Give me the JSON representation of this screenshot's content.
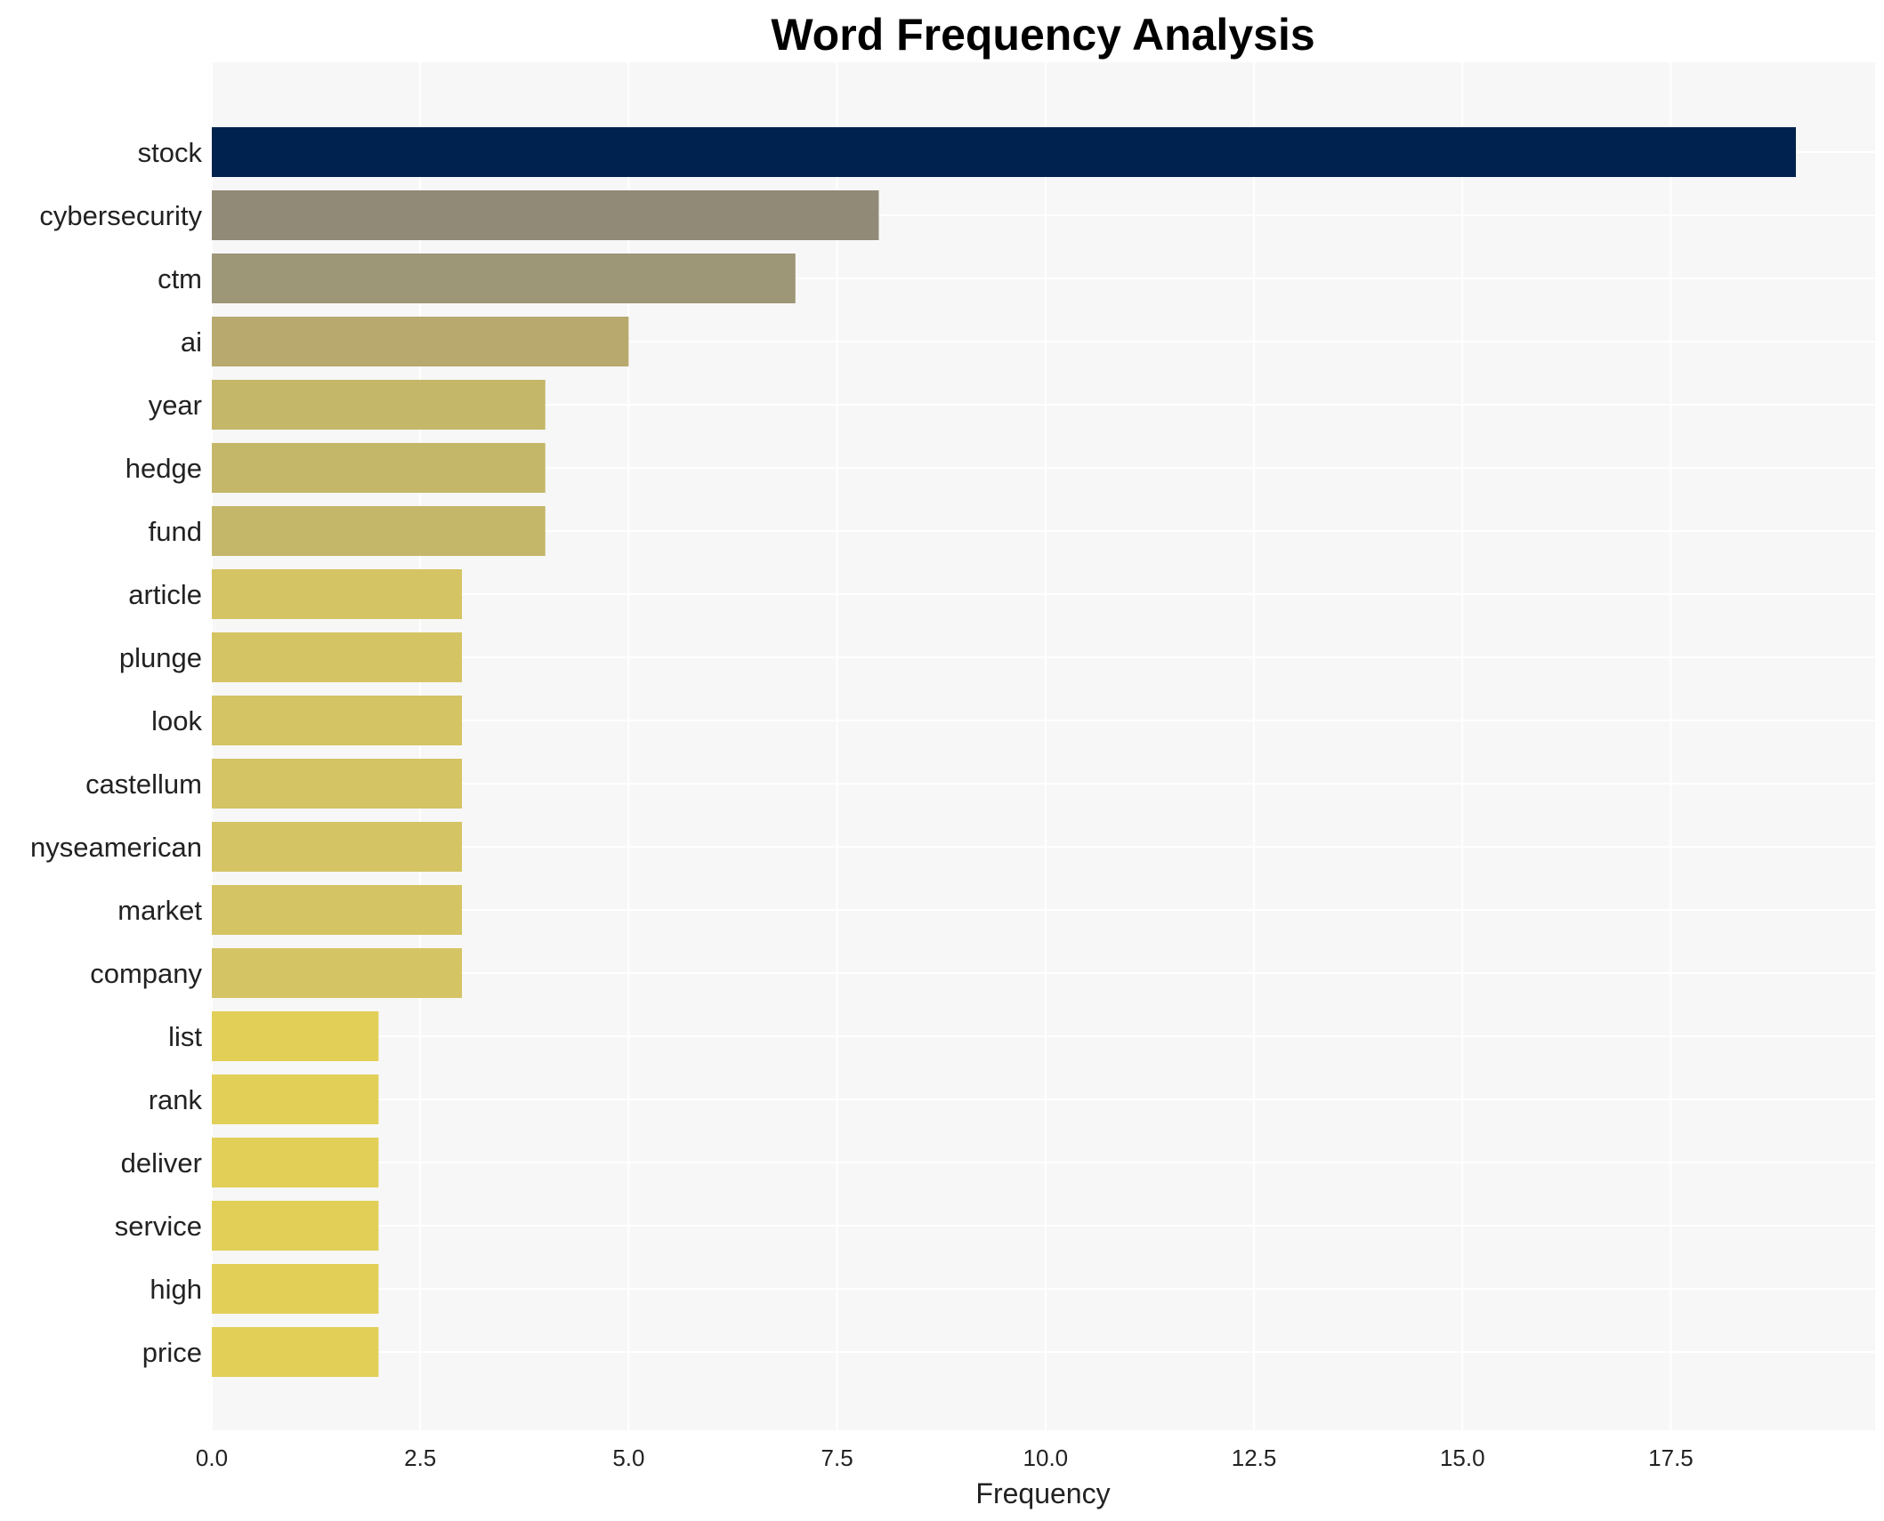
{
  "chart_data": {
    "type": "bar",
    "orientation": "horizontal",
    "title": "Word Frequency Analysis",
    "xlabel": "Frequency",
    "ylabel": "",
    "xlim": [
      0,
      19.95
    ],
    "xticks": [
      0.0,
      2.5,
      5.0,
      7.5,
      10.0,
      12.5,
      15.0,
      17.5
    ],
    "xtick_labels": [
      "0.0",
      "2.5",
      "5.0",
      "7.5",
      "10.0",
      "12.5",
      "15.0",
      "17.5"
    ],
    "grid": true,
    "categories": [
      "stock",
      "cybersecurity",
      "ctm",
      "ai",
      "year",
      "hedge",
      "fund",
      "article",
      "plunge",
      "look",
      "castellum",
      "nyseamerican",
      "market",
      "company",
      "list",
      "rank",
      "deliver",
      "service",
      "high",
      "price"
    ],
    "values": [
      19,
      8,
      7,
      5,
      4,
      4,
      4,
      3,
      3,
      3,
      3,
      3,
      3,
      3,
      2,
      2,
      2,
      2,
      2,
      2
    ],
    "colors": [
      "#00224e",
      "#918a77",
      "#9d9677",
      "#b8aa6f",
      "#c5b76a",
      "#c5b76a",
      "#c5b76a",
      "#d4c464",
      "#d4c464",
      "#d4c464",
      "#d4c464",
      "#d4c464",
      "#d4c464",
      "#d4c464",
      "#e2cf58",
      "#e2cf58",
      "#e2cf58",
      "#e2cf58",
      "#e2cf58",
      "#e2cf58"
    ],
    "plot_background": "#f7f7f7",
    "grid_color": "#ffffff"
  }
}
